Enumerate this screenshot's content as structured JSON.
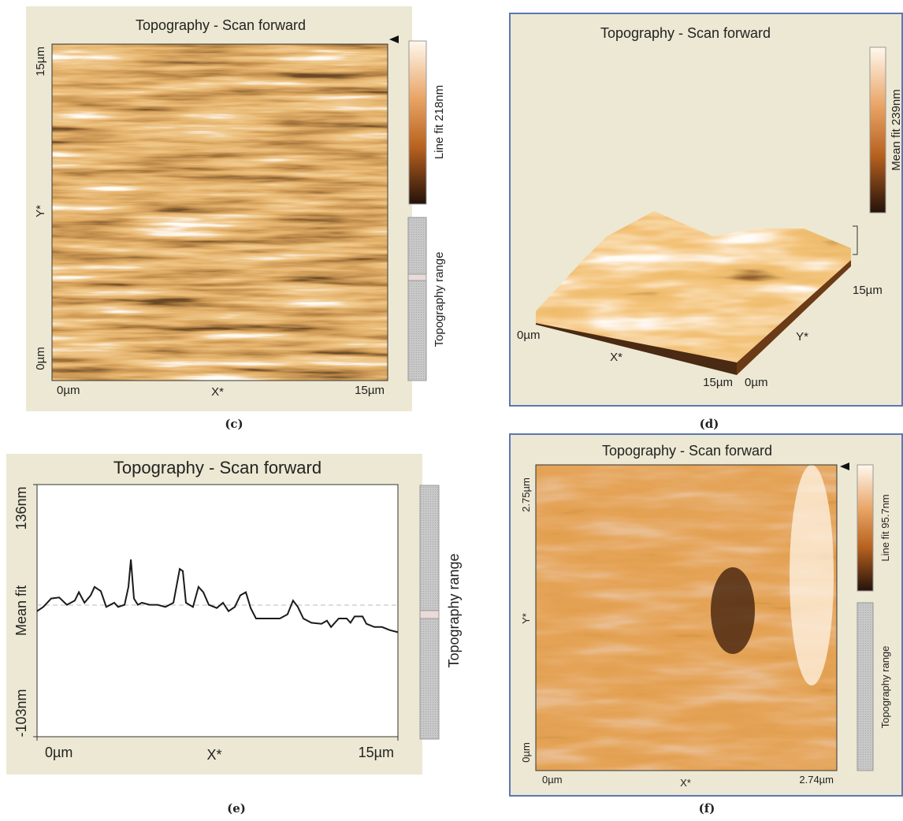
{
  "panels": [
    {
      "label": "(c)",
      "title": "Topography - Scan forward",
      "x_axis": {
        "label": "X*",
        "ticks": [
          "0µm",
          "15µm"
        ]
      },
      "y_axis": {
        "label": "Y*",
        "ticks": [
          "15µm",
          "0µm"
        ]
      },
      "colorbar": "Line fit 218nm",
      "range": "Topography range"
    },
    {
      "label": "(d)",
      "title": "Topography - Scan forward",
      "x_axis": {
        "label": "X*",
        "ticks": [
          "0µm",
          "15µm"
        ]
      },
      "y_axis": {
        "label": "Y*",
        "ticks": [
          "0µm",
          "15µm"
        ]
      },
      "colorbar": "Mean fit 239nm"
    },
    {
      "label": "(e)",
      "title": "Topography - Scan forward",
      "range": "Topography range",
      "chart": {
        "type": "line",
        "x_label": "X*",
        "y_label": "Mean fit",
        "x": [
          0,
          0.26,
          0.59,
          0.92,
          1.24,
          1.57,
          1.74,
          1.97,
          2.23,
          2.39,
          2.65,
          2.88,
          3.21,
          3.37,
          3.64,
          3.8,
          3.9,
          4.03,
          4.19,
          4.36,
          4.68,
          5.01,
          5.34,
          5.67,
          5.93,
          6.06,
          6.19,
          6.48,
          6.71,
          6.91,
          7.14,
          7.47,
          7.73,
          7.96,
          8.22,
          8.45,
          8.68,
          8.88,
          9.1,
          9.6,
          10.09,
          10.41,
          10.64,
          10.84,
          11.07,
          11.4,
          11.82,
          12.05,
          12.22,
          12.54,
          12.87,
          13.03,
          13.2,
          13.53,
          13.69,
          14.02,
          14.34,
          14.67,
          15
        ],
        "values": [
          16,
          20,
          28,
          29,
          22,
          26,
          34,
          24,
          31,
          39,
          35,
          20,
          24,
          20,
          22,
          39,
          65,
          28,
          22,
          24,
          22,
          22,
          20,
          24,
          56,
          54,
          24,
          20,
          39,
          34,
          22,
          19,
          24,
          16,
          20,
          31,
          34,
          19,
          9,
          9,
          9,
          13,
          26,
          20,
          9,
          5,
          4,
          7,
          1,
          9,
          9,
          5,
          11,
          11,
          4,
          1,
          1,
          -2,
          -4
        ],
        "color": "#1a1a1a",
        "xlim": [
          0,
          15
        ],
        "xticks": [
          {
            "value": 0,
            "label": "0µm"
          },
          {
            "value": 15,
            "label": "15µm"
          }
        ],
        "ylim": [
          -103,
          136
        ],
        "yticks": [
          {
            "value": 136,
            "label": "136nm"
          },
          {
            "value": -103,
            "label": "-103nm"
          }
        ]
      }
    },
    {
      "label": "(f)",
      "title": "Topography - Scan forward",
      "x_axis": {
        "label": "X*",
        "ticks": [
          "0µm",
          "2.74µm"
        ]
      },
      "y_axis": {
        "label": "Y*",
        "ticks": [
          "2.75µm",
          "0µm"
        ]
      },
      "colorbar": "Line fit 95.7nm",
      "range": "Topography range"
    }
  ]
}
